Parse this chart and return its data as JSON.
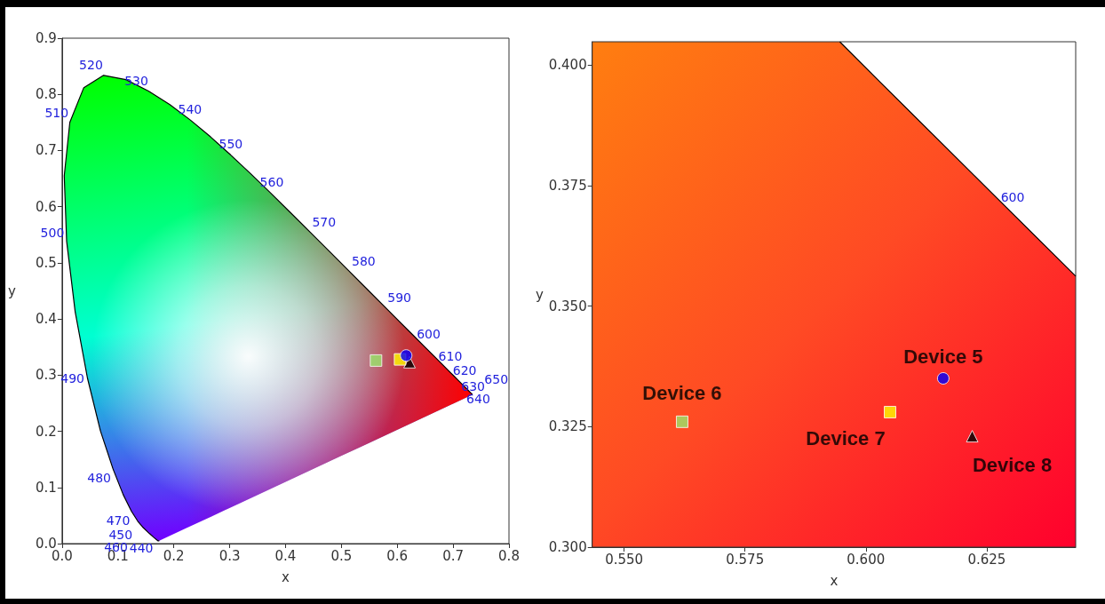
{
  "chart_data": [
    {
      "type": "scatter",
      "xlabel": "x",
      "ylabel": "y",
      "xlim": [
        0,
        0.8
      ],
      "ylim": [
        0,
        0.9
      ],
      "xticks": [
        {
          "value": 0,
          "label": "0.0"
        },
        0.1,
        0.2,
        0.3,
        0.4,
        0.5,
        0.6,
        0.7,
        0.8
      ],
      "yticks": [
        {
          "value": 0,
          "label": "0.0"
        },
        0.1,
        0.2,
        0.3,
        0.4,
        0.5,
        0.6,
        0.7,
        0.8,
        0.9
      ],
      "grid": false,
      "series": [
        {
          "type": "line",
          "color": "#000000",
          "x": [
            0.1741,
            0.1733,
            0.1714,
            0.1644,
            0.1566,
            0.144,
            0.1355,
            0.1241,
            0.1096,
            0.0913,
            0.0687,
            0.0454,
            0.0235,
            0.0082,
            0.0039,
            0.0139,
            0.0389,
            0.0743,
            0.1142,
            0.1547,
            0.1929,
            0.2296,
            0.2658,
            0.3016,
            0.3373,
            0.3731,
            0.4087,
            0.4441,
            0.4788,
            0.5125,
            0.5448,
            0.5752,
            0.6029,
            0.627,
            0.6482,
            0.6658,
            0.6801,
            0.6915,
            0.7006,
            0.7079,
            0.719,
            0.726,
            0.73,
            0.7334,
            0.7347
          ],
          "values": [
            0.005,
            0.0048,
            0.0051,
            0.0109,
            0.0177,
            0.0297,
            0.0399,
            0.0578,
            0.0868,
            0.1327,
            0.2007,
            0.295,
            0.4127,
            0.5384,
            0.6548,
            0.7502,
            0.812,
            0.8338,
            0.8262,
            0.8059,
            0.7816,
            0.7543,
            0.7243,
            0.6923,
            0.6589,
            0.6245,
            0.5896,
            0.5547,
            0.5202,
            0.4866,
            0.4544,
            0.4242,
            0.3965,
            0.3725,
            0.3514,
            0.334,
            0.3197,
            0.3083,
            0.2993,
            0.292,
            0.2809,
            0.274,
            0.27,
            0.2666,
            0.2653
          ]
        },
        {
          "color": "#0000ff",
          "marker": "circle",
          "x": [
            0.616
          ],
          "values": [
            0.335
          ]
        },
        {
          "color": "#99e66b",
          "marker": "square",
          "x": [
            0.562
          ],
          "values": [
            0.326
          ]
        },
        {
          "color": "#ffff00",
          "marker": "square",
          "x": [
            0.605
          ],
          "values": [
            0.328
          ]
        },
        {
          "color": "#000000",
          "marker": "triangle",
          "x": [
            0.622
          ],
          "values": [
            0.323
          ]
        }
      ],
      "annotations": [
        {
          "text": "440",
          "x": 0.1644,
          "y": 0.0109
        },
        {
          "text": "450",
          "x": 0.1566,
          "y": 0.0177
        },
        {
          "text": "460",
          "x": 0.144,
          "y": 0.0297
        },
        {
          "text": "470",
          "x": 0.1241,
          "y": 0.0578
        },
        {
          "text": "480",
          "x": 0.0913,
          "y": 0.1327
        },
        {
          "text": "490",
          "x": 0.0454,
          "y": 0.295
        },
        {
          "text": "500",
          "x": 0.0082,
          "y": 0.5384
        },
        {
          "text": "510",
          "x": 0.0139,
          "y": 0.7502
        },
        {
          "text": "520",
          "x": 0.0743,
          "y": 0.8338
        },
        {
          "text": "530",
          "x": 0.1547,
          "y": 0.8059
        },
        {
          "text": "540",
          "x": 0.2296,
          "y": 0.7543
        },
        {
          "text": "550",
          "x": 0.3016,
          "y": 0.6923
        },
        {
          "text": "560",
          "x": 0.3731,
          "y": 0.6245
        },
        {
          "text": "570",
          "x": 0.4441,
          "y": 0.5547
        },
        {
          "text": "580",
          "x": 0.5125,
          "y": 0.4866
        },
        {
          "text": "590",
          "x": 0.5752,
          "y": 0.4242
        },
        {
          "text": "600",
          "x": 0.627,
          "y": 0.3725
        },
        {
          "text": "610",
          "x": 0.6658,
          "y": 0.334
        },
        {
          "text": "620",
          "x": 0.6915,
          "y": 0.3083
        },
        {
          "text": "630",
          "x": 0.7079,
          "y": 0.292
        },
        {
          "text": "640",
          "x": 0.719,
          "y": 0.2809
        },
        {
          "text": "650",
          "x": 0.726,
          "y": 0.274
        }
      ]
    },
    {
      "type": "scatter",
      "xlabel": "x",
      "ylabel": "y",
      "xlim": [
        0.5434,
        0.6434
      ],
      "ylim": [
        0.3,
        0.4048
      ],
      "xticks": [
        {
          "value": 0.55,
          "label": "0.550"
        },
        {
          "value": 0.575,
          "label": "0.575"
        },
        {
          "value": 0.6,
          "label": "0.600"
        },
        {
          "value": 0.625,
          "label": "0.625"
        }
      ],
      "yticks": [
        {
          "value": 0.3,
          "label": "0.300"
        },
        {
          "value": 0.325,
          "label": "0.325"
        },
        {
          "value": 0.35,
          "label": "0.350"
        },
        {
          "value": 0.375,
          "label": "0.375"
        },
        {
          "value": 0.4,
          "label": "0.400"
        }
      ],
      "grid": false,
      "series": [
        {
          "type": "line",
          "color": "#000000",
          "x": [
            0.5946,
            0.6029,
            0.627,
            0.6434
          ],
          "values": [
            0.4048,
            0.3965,
            0.3725,
            0.3562
          ]
        },
        {
          "name": "Device 5",
          "color": "#0000ff",
          "marker": "circle",
          "x": [
            0.616
          ],
          "values": [
            0.335
          ]
        },
        {
          "name": "Device 6",
          "color": "#99e66b",
          "marker": "square",
          "x": [
            0.562
          ],
          "values": [
            0.326
          ]
        },
        {
          "name": "Device 7",
          "color": "#ffff00",
          "marker": "square",
          "x": [
            0.605
          ],
          "values": [
            0.328
          ]
        },
        {
          "name": "Device 8",
          "color": "#000000",
          "marker": "triangle",
          "x": [
            0.622
          ],
          "values": [
            0.323
          ]
        }
      ],
      "annotations": [
        {
          "text": "600",
          "x": 0.627,
          "y": 0.3725
        }
      ]
    }
  ]
}
